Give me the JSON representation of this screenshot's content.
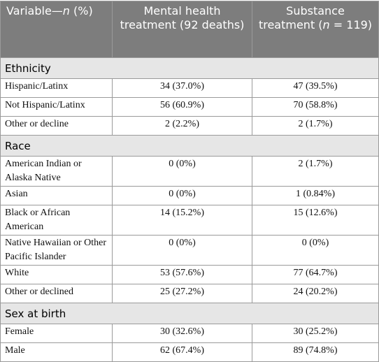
{
  "header": [
    [
      "Variable—",
      "n",
      " (%)"
    ],
    [
      "Mental health treatment (92 deaths)"
    ],
    [
      "Substance treatment (",
      "n",
      " = 119)"
    ]
  ],
  "sections": [
    {
      "title": "Ethnicity",
      "rows": [
        [
          "Hispanic/Latinx",
          "34 (37.0%)",
          "47 (39.5%)"
        ],
        [
          "Not Hispanic/Latinx",
          "56 (60.9%)",
          "70 (58.8%)"
        ],
        [
          "Other or decline",
          "2 (2.2%)",
          "2 (1.7%)"
        ]
      ]
    },
    {
      "title": "Race",
      "rows": [
        [
          "American Indian or Alaska Native",
          "0 (0%)",
          "2 (1.7%)"
        ],
        [
          "Asian",
          "0 (0%)",
          "1 (0.84%)"
        ],
        [
          "Black or African American",
          "14 (15.2%)",
          "15 (12.6%)"
        ],
        [
          "Native Hawaiian or Other Pacific Islander",
          "0 (0%)",
          "0 (0%)"
        ],
        [
          "White",
          "53 (57.6%)",
          "77 (64.7%)"
        ],
        [
          "Other or declined",
          "25 (27.2%)",
          "24 (20.2%)"
        ]
      ]
    },
    {
      "title": "Sex at birth",
      "rows": [
        [
          "Female",
          "30 (32.6%)",
          "30 (25.2%)"
        ],
        [
          "Male",
          "62 (67.4%)",
          "89 (74.8%)"
        ]
      ]
    }
  ]
}
